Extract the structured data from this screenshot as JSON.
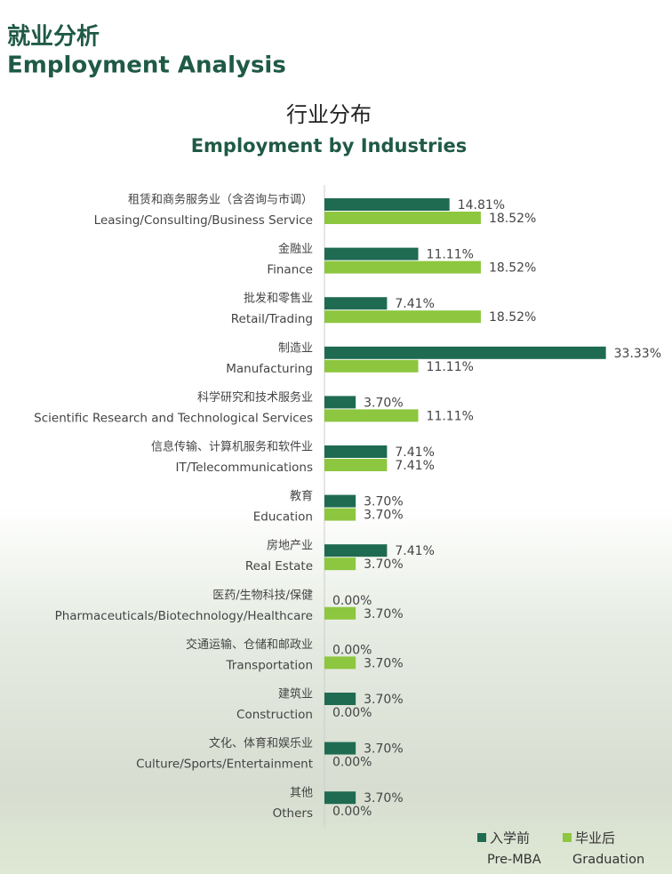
{
  "header": {
    "title_cn": "就业分析",
    "title_en": "Employment Analysis"
  },
  "chart_data": {
    "type": "bar",
    "orientation": "horizontal",
    "title": "行业分布",
    "subtitle": "Employment by Industries",
    "categories": [
      [
        "租赁和商务服务业（含咨询与市调）",
        "Leasing/Consulting/Business Service"
      ],
      [
        "金融业",
        "Finance"
      ],
      [
        "批发和零售业",
        "Retail/Trading"
      ],
      [
        "制造业",
        "Manufacturing"
      ],
      [
        "科学研究和技术服务业",
        "Scientific Research and Technological Services"
      ],
      [
        "信息传输、计算机服务和软件业",
        "IT/Telecommunications"
      ],
      [
        "教育",
        "Education"
      ],
      [
        "房地产业",
        "Real Estate"
      ],
      [
        "医药/生物科技/保健",
        "Pharmaceuticals/Biotechnology/Healthcare"
      ],
      [
        "交通运输、仓储和邮政业",
        "Transportation"
      ],
      [
        "建筑业",
        "Construction"
      ],
      [
        "文化、体育和娱乐业",
        "Culture/Sports/Entertainment"
      ],
      [
        "其他",
        "Others"
      ]
    ],
    "xlim": [
      0,
      36
    ],
    "series": [
      {
        "name": [
          "入学前",
          "Pre-MBA"
        ],
        "color": "#1f6b52",
        "values": [
          14.81,
          11.11,
          7.41,
          33.33,
          3.7,
          7.41,
          3.7,
          7.41,
          0,
          0,
          3.7,
          3.7,
          3.7
        ],
        "value_labels": [
          "14.81%",
          "11.11%",
          "7.41%",
          "33.33%",
          "3.70%",
          "7.41%",
          "3.70%",
          "7.41%",
          "0.00%",
          "0.00%",
          "3.70%",
          "3.70%",
          "3.70%"
        ]
      },
      {
        "name": [
          "毕业后",
          "Graduation"
        ],
        "color": "#8dc63f",
        "values": [
          18.52,
          18.52,
          18.52,
          11.11,
          11.11,
          7.41,
          3.7,
          3.7,
          3.7,
          3.7,
          0,
          0,
          0
        ],
        "value_labels": [
          "18.52%",
          "18.52%",
          "18.52%",
          "11.11%",
          "11.11%",
          "7.41%",
          "3.70%",
          "3.70%",
          "3.70%",
          "3.70%",
          "0.00%",
          "0.00%",
          "0.00%"
        ]
      }
    ]
  }
}
